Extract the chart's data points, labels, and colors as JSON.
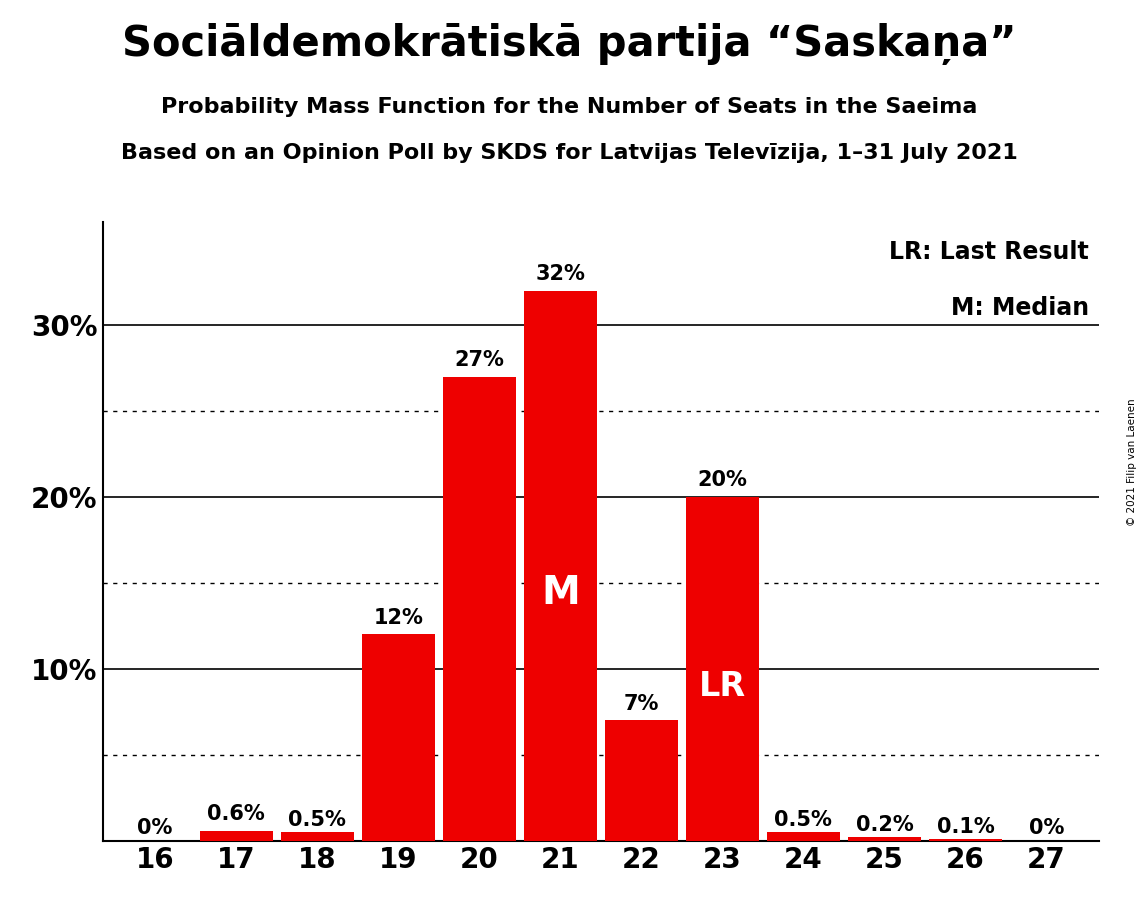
{
  "title": "Sociāldemokrātiskā partija “Saskaņa”",
  "subtitle": "Probability Mass Function for the Number of Seats in the Saeima",
  "subsubtitle": "Based on an Opinion Poll by SKDS for Latvijas Televīzija, 1–31 July 2021",
  "copyright": "© 2021 Filip van Laenen",
  "seats": [
    16,
    17,
    18,
    19,
    20,
    21,
    22,
    23,
    24,
    25,
    26,
    27
  ],
  "probabilities": [
    0.0,
    0.6,
    0.5,
    12.0,
    27.0,
    32.0,
    7.0,
    20.0,
    0.5,
    0.2,
    0.1,
    0.0
  ],
  "bar_labels": [
    "0%",
    "0.6%",
    "0.5%",
    "12%",
    "27%",
    "32%",
    "7%",
    "20%",
    "0.5%",
    "0.2%",
    "0.1%",
    "0%"
  ],
  "bar_color": "#ee0000",
  "background_color": "#ffffff",
  "median_seat": 21,
  "last_result_seat": 23,
  "legend_lr": "LR: Last Result",
  "legend_m": "M: Median",
  "yticks": [
    0,
    10,
    20,
    30
  ],
  "ydotted": [
    5,
    15,
    25
  ],
  "ylim": [
    0,
    36
  ],
  "title_fontsize": 30,
  "subtitle_fontsize": 16,
  "subsubtitle_fontsize": 16,
  "bar_label_fontsize": 15,
  "inside_label_fontsize_M": 28,
  "inside_label_fontsize_LR": 24,
  "ytick_fontsize": 20,
  "xtick_fontsize": 20,
  "legend_fontsize": 17
}
